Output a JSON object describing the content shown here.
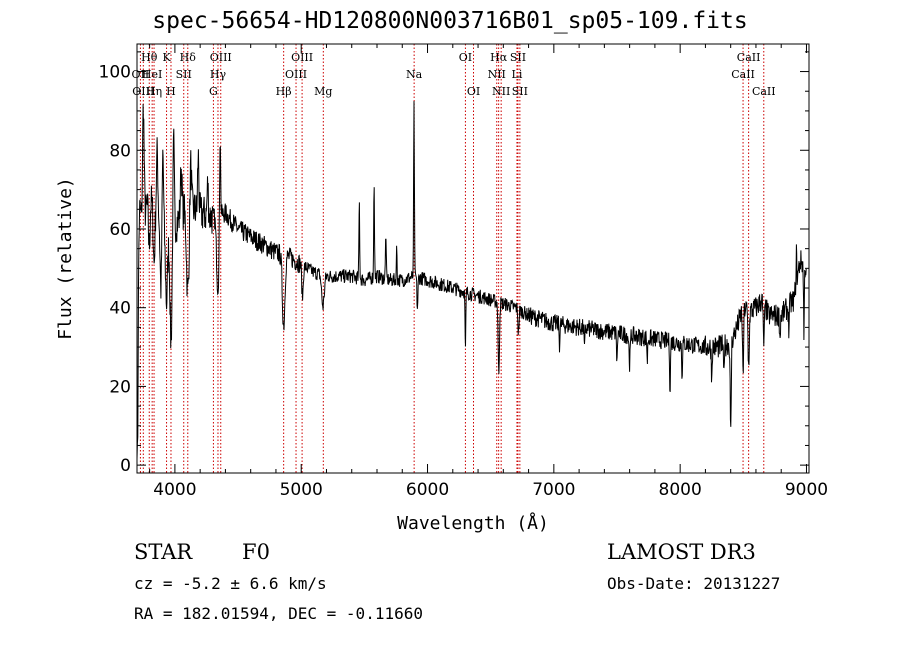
{
  "title": "spec-56654-HD120800N003716B01_sp05-109.fits",
  "footer": {
    "class_label": "STAR",
    "subclass": "F0",
    "survey": "LAMOST DR3",
    "redshift_line": "cz = -5.2 ± 6.6 km/s",
    "obs_date_line": "Obs-Date: 20131227",
    "coords_line": "RA = 182.01594, DEC =  -0.11660"
  },
  "chart_data": {
    "type": "line",
    "title": "spec-56654-HD120800N003716B01_sp05-109.fits",
    "xlabel": "Wavelength (Å)",
    "ylabel": "Flux (relative)",
    "xlim": [
      3700,
      9020
    ],
    "ylim": [
      -2,
      107
    ],
    "xticks": [
      4000,
      5000,
      6000,
      7000,
      8000,
      9000
    ],
    "yticks": [
      0,
      20,
      40,
      60,
      80,
      100
    ],
    "grid": false,
    "line_color": "#000000",
    "marker_color": "#cc0000",
    "lines": [
      {
        "label": "Hθ",
        "wave": 3797,
        "row": 0
      },
      {
        "label": "OII",
        "wave": 3727,
        "row": 1
      },
      {
        "label": "HeI",
        "wave": 3820,
        "row": 1
      },
      {
        "label": "OIII",
        "wave": 3750,
        "row": 2
      },
      {
        "label": "Hη",
        "wave": 3835,
        "row": 2
      },
      {
        "label": "K",
        "wave": 3934,
        "row": 0
      },
      {
        "label": "H",
        "wave": 3969,
        "row": 2
      },
      {
        "label": "SII",
        "wave": 4070,
        "row": 1
      },
      {
        "label": "Hδ",
        "wave": 4102,
        "row": 0
      },
      {
        "label": "G",
        "wave": 4305,
        "row": 2
      },
      {
        "label": "OIII",
        "wave": 4363,
        "row": 0
      },
      {
        "label": "Hγ",
        "wave": 4341,
        "row": 1
      },
      {
        "label": "Hβ",
        "wave": 4861,
        "row": 2
      },
      {
        "label": "OIII",
        "wave": 4959,
        "row": 1
      },
      {
        "label": "OIII",
        "wave": 5007,
        "row": 0
      },
      {
        "label": "Mg",
        "wave": 5175,
        "row": 2
      },
      {
        "label": "Na",
        "wave": 5894,
        "row": 1
      },
      {
        "label": "OI",
        "wave": 6300,
        "row": 0
      },
      {
        "label": "OI",
        "wave": 6364,
        "row": 2
      },
      {
        "label": "NII",
        "wave": 6548,
        "row": 1
      },
      {
        "label": "Hα",
        "wave": 6563,
        "row": 0
      },
      {
        "label": "NII",
        "wave": 6583,
        "row": 2
      },
      {
        "label": "SII",
        "wave": 6716,
        "row": 0
      },
      {
        "label": "Li",
        "wave": 6708,
        "row": 1
      },
      {
        "label": "SII",
        "wave": 6731,
        "row": 2
      },
      {
        "label": "CaII",
        "wave": 8498,
        "row": 1
      },
      {
        "label": "CaII",
        "wave": 8542,
        "row": 0
      },
      {
        "label": "CaII",
        "wave": 8662,
        "row": 2
      }
    ],
    "continuum": [
      [
        3700,
        54
      ],
      [
        3760,
        63
      ],
      [
        3800,
        68
      ],
      [
        3850,
        64
      ],
      [
        3900,
        60
      ],
      [
        3950,
        59
      ],
      [
        4000,
        61
      ],
      [
        4100,
        66
      ],
      [
        4200,
        64
      ],
      [
        4300,
        63
      ],
      [
        4400,
        64
      ],
      [
        4500,
        60
      ],
      [
        4600,
        58
      ],
      [
        4700,
        56
      ],
      [
        4800,
        54
      ],
      [
        4900,
        53
      ],
      [
        5000,
        51
      ],
      [
        5100,
        49
      ],
      [
        5200,
        48
      ],
      [
        5300,
        48
      ],
      [
        5400,
        48
      ],
      [
        5500,
        47
      ],
      [
        5600,
        48
      ],
      [
        5700,
        47
      ],
      [
        5800,
        47
      ],
      [
        5900,
        48
      ],
      [
        6000,
        47
      ],
      [
        6100,
        46
      ],
      [
        6200,
        45
      ],
      [
        6300,
        44
      ],
      [
        6400,
        43
      ],
      [
        6500,
        42
      ],
      [
        6600,
        41
      ],
      [
        6700,
        40
      ],
      [
        6800,
        38
      ],
      [
        6900,
        37
      ],
      [
        7000,
        36
      ],
      [
        7200,
        35
      ],
      [
        7400,
        34
      ],
      [
        7600,
        33
      ],
      [
        7800,
        32
      ],
      [
        8000,
        31
      ],
      [
        8200,
        30
      ],
      [
        8300,
        30
      ],
      [
        8400,
        31
      ],
      [
        8450,
        35
      ],
      [
        8500,
        40
      ],
      [
        8550,
        39
      ],
      [
        8600,
        40
      ],
      [
        8650,
        42
      ],
      [
        8700,
        38
      ],
      [
        8800,
        38
      ],
      [
        8900,
        42
      ],
      [
        8950,
        52
      ],
      [
        9000,
        50
      ]
    ],
    "features": [
      [
        3703,
        -55,
        6
      ],
      [
        3720,
        8,
        10
      ],
      [
        3750,
        30,
        6
      ],
      [
        3797,
        -12,
        6
      ],
      [
        3835,
        -14,
        6
      ],
      [
        3860,
        16,
        6
      ],
      [
        3889,
        -16,
        6
      ],
      [
        3905,
        20,
        5
      ],
      [
        3934,
        -18,
        8
      ],
      [
        3969,
        -28,
        8
      ],
      [
        3990,
        22,
        5
      ],
      [
        4050,
        12,
        6
      ],
      [
        4102,
        -22,
        10
      ],
      [
        4125,
        12,
        6
      ],
      [
        4185,
        14,
        5
      ],
      [
        4260,
        8,
        5
      ],
      [
        4340,
        -18,
        10
      ],
      [
        4358,
        24,
        4
      ],
      [
        4861,
        -18,
        10
      ],
      [
        5010,
        -8,
        6
      ],
      [
        5172,
        -8,
        10
      ],
      [
        5460,
        20,
        3
      ],
      [
        5577,
        25,
        3
      ],
      [
        5670,
        12,
        3
      ],
      [
        5756,
        8,
        3
      ],
      [
        5893,
        43,
        3
      ],
      [
        5920,
        -8,
        4
      ],
      [
        6300,
        -16,
        3
      ],
      [
        6564,
        -18,
        5
      ],
      [
        6720,
        -6,
        4
      ],
      [
        7045,
        -5,
        3
      ],
      [
        7243,
        -6,
        3
      ],
      [
        7500,
        -8,
        3
      ],
      [
        7600,
        -7,
        5
      ],
      [
        7740,
        -6,
        3
      ],
      [
        7920,
        -13,
        3
      ],
      [
        8015,
        -8,
        3
      ],
      [
        8250,
        -8,
        3
      ],
      [
        8345,
        -8,
        3
      ],
      [
        8400,
        -24,
        4
      ],
      [
        8498,
        -18,
        4
      ],
      [
        8542,
        -14,
        5
      ],
      [
        8662,
        -10,
        5
      ],
      [
        8790,
        -6,
        3
      ],
      [
        8860,
        -6,
        3
      ],
      [
        8920,
        8,
        3
      ],
      [
        8980,
        -18,
        3
      ]
    ]
  }
}
